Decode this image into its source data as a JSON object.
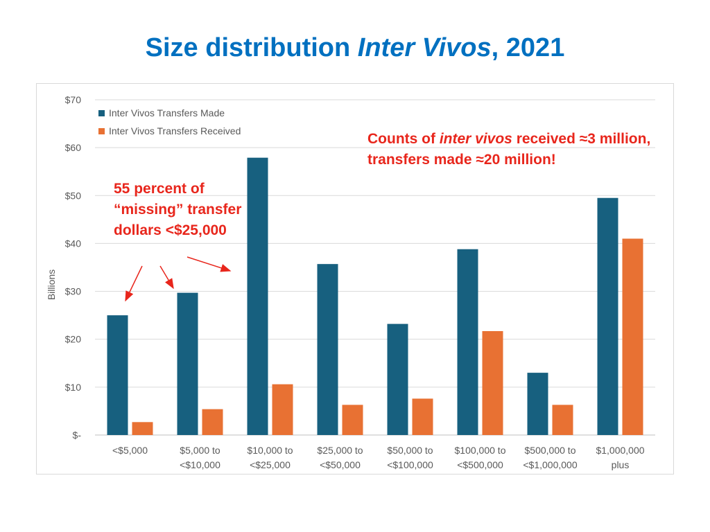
{
  "title": {
    "part1": "Size distribution ",
    "part2_italic": "Inter Vivos",
    "part3": ", 2021"
  },
  "annotations": {
    "counts": {
      "a": "Counts of ",
      "b_italic": "inter vivos",
      "c": " received ≈3 million, transfers made ≈20 million!"
    },
    "missing": "55 percent of “missing” transfer dollars <$25,000"
  },
  "colors": {
    "made": "#17607f",
    "received": "#e87133",
    "annotation": "#e8261c",
    "title": "#0070c0"
  },
  "chart_data": {
    "type": "bar",
    "ylabel": "Billions",
    "ylim": [
      0,
      70
    ],
    "yticks": [
      0,
      10,
      20,
      30,
      40,
      50,
      60,
      70
    ],
    "ytick_labels": [
      "$-",
      "$10",
      "$20",
      "$30",
      "$40",
      "$50",
      "$60",
      "$70"
    ],
    "grid": true,
    "legend_position": "top-left",
    "categories": [
      [
        "<$5,000"
      ],
      [
        "$5,000 to",
        "<$10,000"
      ],
      [
        "$10,000 to",
        "<$25,000"
      ],
      [
        "$25,000 to",
        "<$50,000"
      ],
      [
        "$50,000 to",
        "<$100,000"
      ],
      [
        "$100,000 to",
        "<$500,000"
      ],
      [
        "$500,000 to",
        "<$1,000,000"
      ],
      [
        "$1,000,000",
        "plus"
      ]
    ],
    "series": [
      {
        "name": "Inter Vivos Transfers Made",
        "color": "#17607f",
        "values": [
          25,
          29.7,
          57.9,
          35.7,
          23.2,
          38.8,
          13,
          49.5
        ]
      },
      {
        "name": "Inter Vivos Transfers Received",
        "color": "#e87133",
        "values": [
          2.7,
          5.4,
          10.6,
          6.3,
          7.6,
          21.7,
          6.3,
          41
        ]
      }
    ]
  }
}
